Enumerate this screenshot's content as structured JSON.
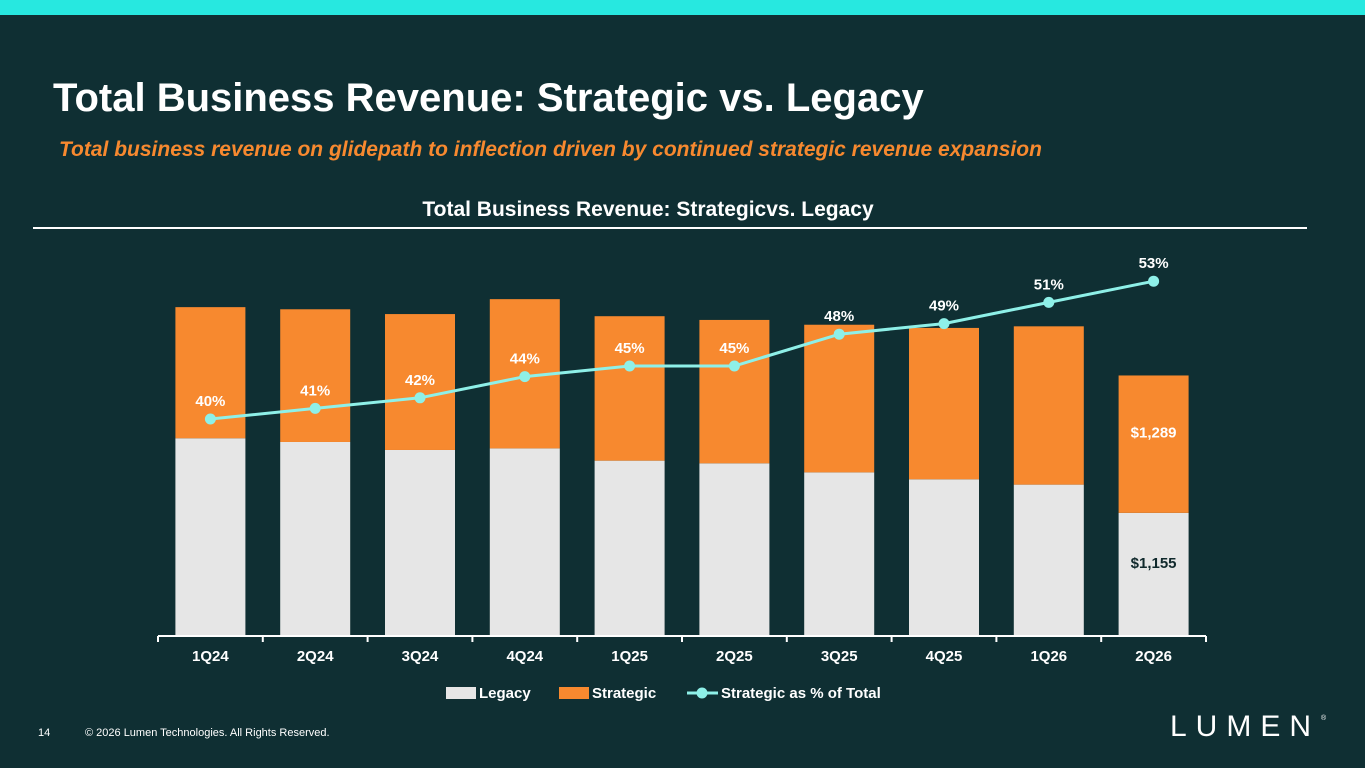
{
  "page": {
    "title": "Total Business Revenue: Strategic vs. Legacy",
    "subtitle": "Total business revenue on glidepath to inflection driven by continued strategic revenue expansion",
    "page_number": "14",
    "copyright": "© 2026 Lumen Technologies. All Rights Reserved.",
    "logo_text": "LUMEN",
    "logo_mark": "®"
  },
  "colors": {
    "background": "#0f2f33",
    "top_band": "#27e8e0",
    "legacy": "#e6e6e6",
    "strategic": "#f7892f",
    "line": "#8ef0e8",
    "text": "#ffffff",
    "subtitle": "#f7892f"
  },
  "chart_data": {
    "type": "bar",
    "stacked": true,
    "title": "Total Business Revenue: Strategicvs. Legacy",
    "categories": [
      "1Q24",
      "2Q24",
      "3Q24",
      "4Q24",
      "1Q25",
      "2Q25",
      "3Q25",
      "4Q25",
      "1Q26",
      "2Q26"
    ],
    "series": [
      {
        "name": "Legacy",
        "values": [
          1855,
          1820,
          1745,
          1760,
          1645,
          1620,
          1535,
          1470,
          1420,
          1155
        ],
        "labels": [
          "",
          "",
          "",
          "",
          "",
          "",
          "",
          "",
          "",
          "$1,155"
        ]
      },
      {
        "name": "Strategic",
        "values": [
          1230,
          1245,
          1275,
          1400,
          1355,
          1345,
          1385,
          1420,
          1485,
          1289
        ],
        "labels": [
          "",
          "",
          "",
          "",
          "",
          "",
          "",
          "",
          "",
          "$1,289"
        ]
      }
    ],
    "line_series": {
      "name": "Strategic as % of Total",
      "values": [
        40,
        41,
        42,
        44,
        45,
        45,
        48,
        49,
        51,
        53
      ],
      "labels": [
        "40%",
        "41%",
        "42%",
        "44%",
        "45%",
        "45%",
        "48%",
        "49%",
        "51%",
        "53%"
      ]
    },
    "legend": {
      "position": "bottom",
      "items": [
        "Legacy",
        "Strategic",
        "Strategic as % of Total"
      ]
    },
    "grid": false
  }
}
